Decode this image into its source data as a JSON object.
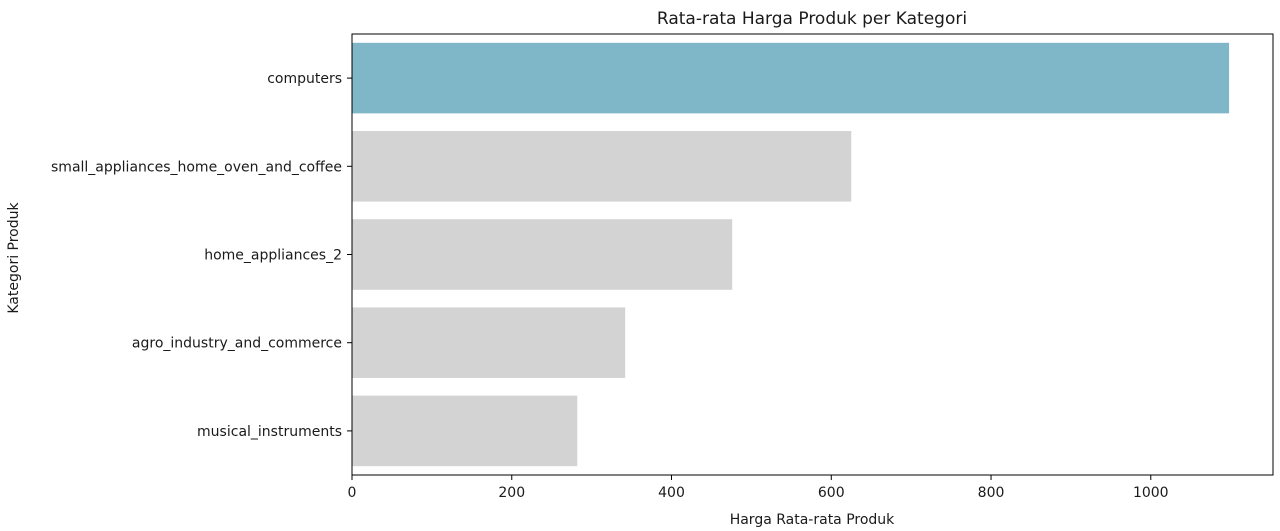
{
  "chart_data": {
    "type": "bar",
    "orientation": "horizontal",
    "title": "Rata-rata Harga Produk per Kategori",
    "xlabel": "Harga Rata-rata Produk",
    "ylabel": "Kategori Produk",
    "categories": [
      "computers",
      "small_appliances_home_oven_and_coffee",
      "home_appliances_2",
      "agro_industry_and_commerce",
      "musical_instruments"
    ],
    "values": [
      1098,
      625,
      476,
      342,
      282
    ],
    "xlim": [
      0,
      1153
    ],
    "xticks": [
      0,
      200,
      400,
      600,
      800,
      1000
    ],
    "grid": false,
    "colors": {
      "highlight": "#7fb6c8",
      "default": "#d3d3d3"
    }
  }
}
